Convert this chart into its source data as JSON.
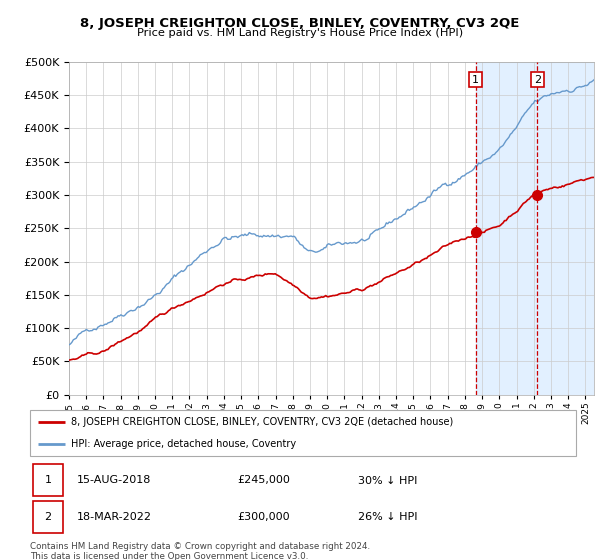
{
  "title": "8, JOSEPH CREIGHTON CLOSE, BINLEY, COVENTRY, CV3 2QE",
  "subtitle": "Price paid vs. HM Land Registry's House Price Index (HPI)",
  "legend_line1": "8, JOSEPH CREIGHTON CLOSE, BINLEY, COVENTRY, CV3 2QE (detached house)",
  "legend_line2": "HPI: Average price, detached house, Coventry",
  "transaction1_date": "15-AUG-2018",
  "transaction1_price": "£245,000",
  "transaction1_hpi": "30% ↓ HPI",
  "transaction2_date": "18-MAR-2022",
  "transaction2_price": "£300,000",
  "transaction2_hpi": "26% ↓ HPI",
  "footer": "Contains HM Land Registry data © Crown copyright and database right 2024.\nThis data is licensed under the Open Government Licence v3.0.",
  "red_color": "#cc0000",
  "blue_color": "#6699cc",
  "bg_shaded": "#ddeeff",
  "ylim": [
    0,
    500000
  ],
  "xlim_start": 1995.0,
  "xlim_end": 2025.5,
  "transaction1_x": 2018.62,
  "transaction2_x": 2022.21,
  "transaction1_y": 245000,
  "transaction2_y": 300000
}
